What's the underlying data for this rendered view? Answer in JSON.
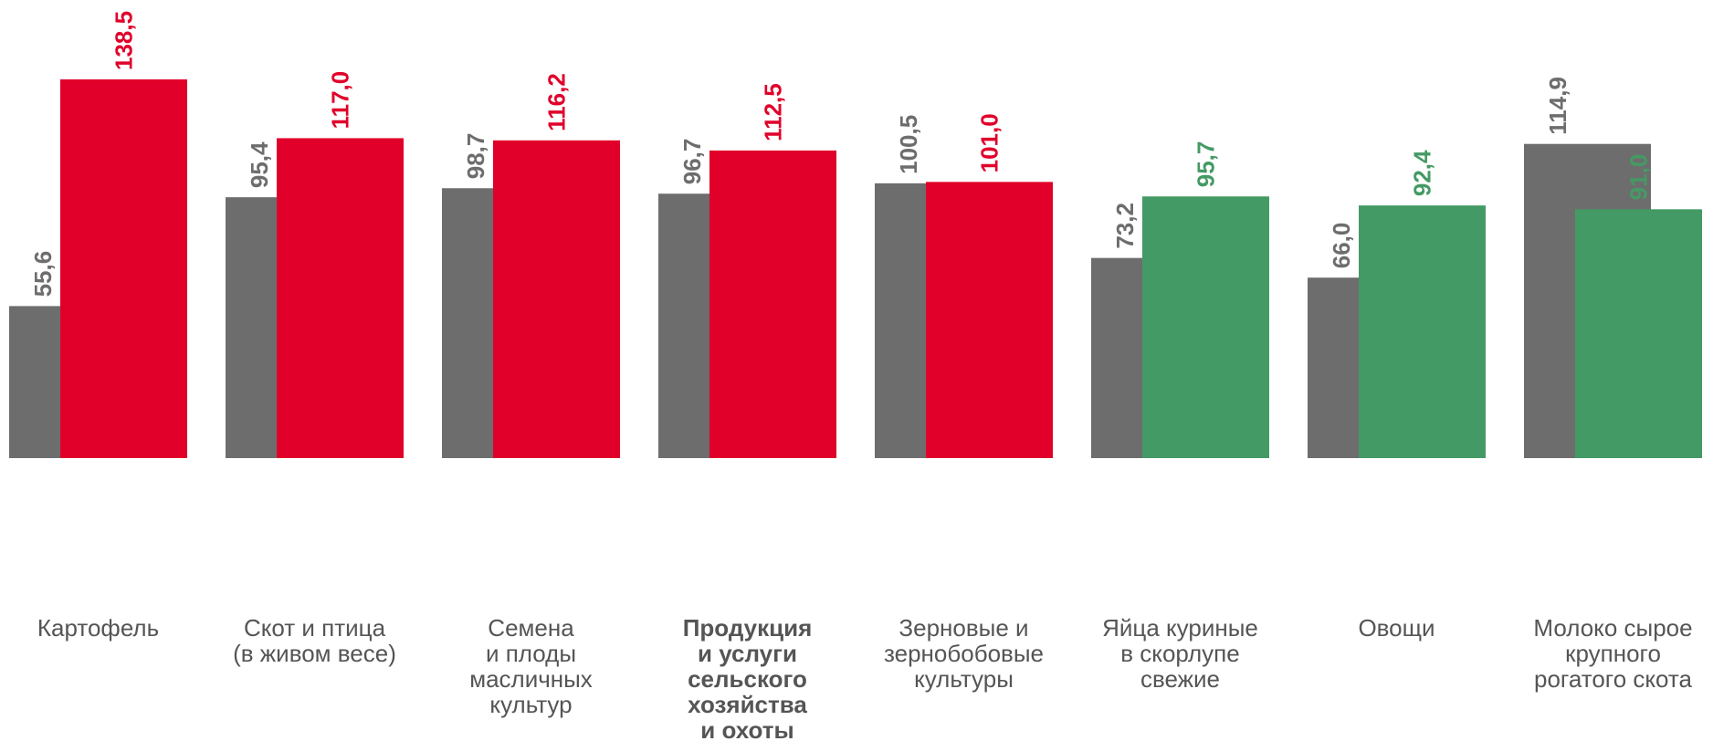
{
  "chart_data": {
    "type": "bar",
    "categories": [
      "Картофель",
      "Скот и птица\n(в живом весе)",
      "Семена\nи плоды\nмасличных\nкультур",
      "Продукция\nи услуги\nсельского\nхозяйства\nи охоты",
      "Зерновые и\nзернобобовые\nкультуры",
      "Яйца куриные\nв скорлупе\nсвежие",
      "Овощи",
      "Молоко сырое\nкрупного\nрогатого скота"
    ],
    "bold_categories": [
      3
    ],
    "series": [
      {
        "color": "#6d6d6d",
        "values": [
          55.6,
          95.4,
          98.7,
          96.7,
          100.5,
          73.2,
          66.0,
          114.9
        ],
        "value_labels": [
          "55,6",
          "95,4",
          "98,7",
          "96,7",
          "100,5",
          "73,2",
          "66,0",
          "114,9"
        ]
      },
      {
        "colors": [
          "#e0002a",
          "#e0002a",
          "#e0002a",
          "#e0002a",
          "#e0002a",
          "#449a64",
          "#449a64",
          "#449a64"
        ],
        "values": [
          138.5,
          117.0,
          116.2,
          112.5,
          101.0,
          95.7,
          92.4,
          91.0
        ],
        "value_labels": [
          "138,5",
          "117,0",
          "116,2",
          "112,5",
          "101,0",
          "95,7",
          "92,4",
          "91,0"
        ]
      }
    ]
  }
}
